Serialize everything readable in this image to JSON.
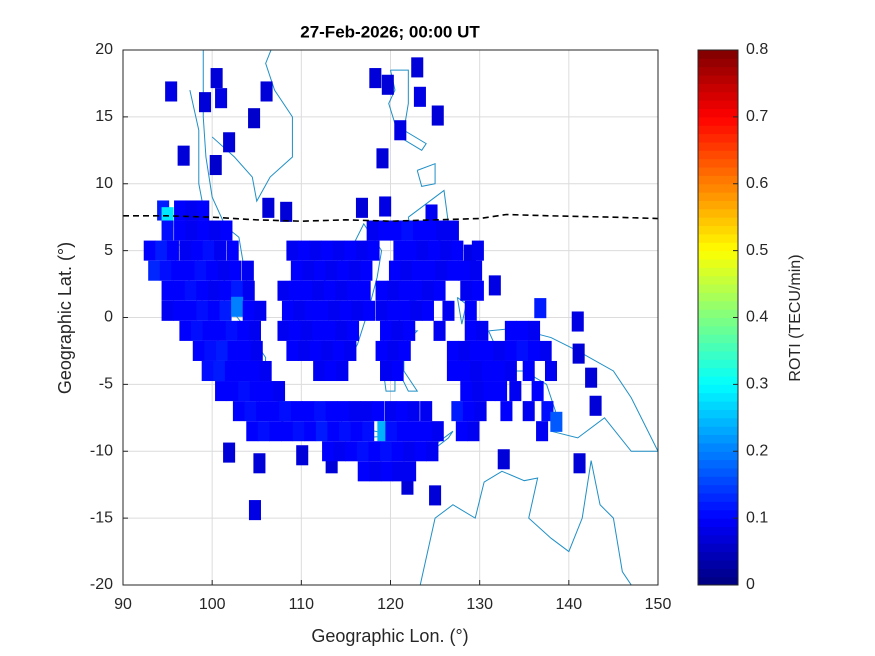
{
  "chart_data": {
    "type": "grid-map",
    "title": "27-Feb-2026; 00:00 UT",
    "xlabel": "Geographic Lon. (°)",
    "ylabel": "Geographic Lat. (°)",
    "colorbar_label": "ROTI (TECU/min)",
    "colormap": "jet",
    "clim": [
      0,
      0.8
    ],
    "cticks": [
      0,
      0.1,
      0.2,
      0.3,
      0.4,
      0.5,
      0.6,
      0.7,
      0.8
    ],
    "xlim": [
      90,
      150
    ],
    "xticks": [
      90,
      100,
      110,
      120,
      130,
      140,
      150
    ],
    "ylim": [
      -20,
      20
    ],
    "yticks": [
      -20,
      -15,
      -10,
      -5,
      0,
      5,
      10,
      15,
      20
    ],
    "grid": true,
    "cells": [
      [
        95.4,
        16.9,
        0.08
      ],
      [
        100.5,
        17.9,
        0.07
      ],
      [
        99.2,
        16.1,
        0.07
      ],
      [
        101,
        16.4,
        0.08
      ],
      [
        106.1,
        16.9,
        0.07
      ],
      [
        104.7,
        14.9,
        0.06
      ],
      [
        101.9,
        13.1,
        0.07
      ],
      [
        96.8,
        12.1,
        0.07
      ],
      [
        100.4,
        11.4,
        0.06
      ],
      [
        118.3,
        17.9,
        0.07
      ],
      [
        119.7,
        17.4,
        0.07
      ],
      [
        123,
        18.7,
        0.07
      ],
      [
        123.3,
        16.5,
        0.08
      ],
      [
        125.3,
        15.1,
        0.07
      ],
      [
        121.1,
        14,
        0.08
      ],
      [
        119.1,
        11.9,
        0.07
      ],
      [
        106.3,
        8.2,
        0.07
      ],
      [
        108.3,
        7.9,
        0.07
      ],
      [
        116.8,
        8.2,
        0.07
      ],
      [
        119.4,
        8.3,
        0.08
      ],
      [
        101.9,
        -10.1,
        0.07
      ],
      [
        105.3,
        -10.9,
        0.07
      ],
      [
        104.8,
        -14.4,
        0.08
      ],
      [
        110.1,
        -10.3,
        0.07
      ],
      [
        113.4,
        -10.9,
        0.07
      ],
      [
        121.9,
        -12.5,
        0.07
      ],
      [
        125,
        -13.3,
        0.07
      ],
      [
        132.7,
        -10.6,
        0.07
      ],
      [
        141.2,
        -10.9,
        0.07
      ],
      [
        142.5,
        -4.5,
        0.07
      ],
      [
        141.1,
        -2.7,
        0.07
      ],
      [
        141,
        -0.3,
        0.08
      ],
      [
        136.8,
        0.7,
        0.12
      ],
      [
        143,
        -6.6,
        0.07
      ],
      [
        131.7,
        2.4,
        0.08
      ],
      [
        128.9,
        4.7,
        0.08
      ],
      [
        124.6,
        7.7,
        0.09
      ],
      [
        94.5,
        8,
        0.12
      ],
      [
        95,
        7.5,
        0.28
      ],
      [
        96.4,
        8,
        0.1
      ],
      [
        97.7,
        8,
        0.09
      ],
      [
        99,
        8,
        0.1
      ],
      [
        95,
        6.5,
        0.11
      ],
      [
        96.4,
        6.5,
        0.1
      ],
      [
        97.7,
        6.5,
        0.09
      ],
      [
        99,
        6.5,
        0.1
      ],
      [
        100.3,
        6.5,
        0.09
      ],
      [
        101.6,
        6.5,
        0.1
      ],
      [
        93,
        5,
        0.1
      ],
      [
        94.3,
        5,
        0.12
      ],
      [
        95.6,
        5,
        0.1
      ],
      [
        97,
        5,
        0.09
      ],
      [
        98.3,
        5,
        0.1
      ],
      [
        99.6,
        5,
        0.11
      ],
      [
        100.9,
        5,
        0.09
      ],
      [
        102.3,
        5,
        0.1
      ],
      [
        93.5,
        3.5,
        0.13
      ],
      [
        94.8,
        3.5,
        0.11
      ],
      [
        96.1,
        3.5,
        0.1
      ],
      [
        97.4,
        3.5,
        0.1
      ],
      [
        98.7,
        3.5,
        0.11
      ],
      [
        100,
        3.5,
        0.1
      ],
      [
        101.3,
        3.5,
        0.09
      ],
      [
        102.6,
        3.5,
        0.1
      ],
      [
        104,
        3.5,
        0.09
      ],
      [
        95,
        2,
        0.1
      ],
      [
        96.3,
        2,
        0.1
      ],
      [
        97.6,
        2,
        0.11
      ],
      [
        98.9,
        2,
        0.1
      ],
      [
        100.2,
        2,
        0.09
      ],
      [
        101.5,
        2,
        0.1
      ],
      [
        102.8,
        2,
        0.12
      ],
      [
        104.1,
        2,
        0.09
      ],
      [
        95,
        0.5,
        0.09
      ],
      [
        96.3,
        0.5,
        0.1
      ],
      [
        97.6,
        0.5,
        0.1
      ],
      [
        98.9,
        0.5,
        0.11
      ],
      [
        100.2,
        0.5,
        0.1
      ],
      [
        101.5,
        0.5,
        0.12
      ],
      [
        102.8,
        0.8,
        0.2
      ],
      [
        104.1,
        0.5,
        0.1
      ],
      [
        105.4,
        0.5,
        0.09
      ],
      [
        97,
        -1,
        0.1
      ],
      [
        98.3,
        -1,
        0.11
      ],
      [
        99.6,
        -1,
        0.1
      ],
      [
        100.9,
        -1,
        0.1
      ],
      [
        102.2,
        -1,
        0.11
      ],
      [
        103.5,
        -1,
        0.1
      ],
      [
        104.8,
        -1,
        0.09
      ],
      [
        98.5,
        -2.5,
        0.1
      ],
      [
        99.8,
        -2.5,
        0.11
      ],
      [
        101.1,
        -2.5,
        0.12
      ],
      [
        102.4,
        -2.5,
        0.1
      ],
      [
        103.7,
        -2.5,
        0.1
      ],
      [
        105,
        -2.5,
        0.09
      ],
      [
        99.5,
        -4,
        0.11
      ],
      [
        100.8,
        -4,
        0.12
      ],
      [
        102.1,
        -4,
        0.1
      ],
      [
        103.4,
        -4,
        0.1
      ],
      [
        104.7,
        -4,
        0.1
      ],
      [
        106,
        -4,
        0.09
      ],
      [
        101,
        -5.5,
        0.1
      ],
      [
        102.3,
        -5.5,
        0.1
      ],
      [
        103.6,
        -5.5,
        0.11
      ],
      [
        104.9,
        -5.5,
        0.1
      ],
      [
        106.2,
        -5.5,
        0.1
      ],
      [
        107.5,
        -5.5,
        0.09
      ],
      [
        103,
        -7,
        0.1
      ],
      [
        104.3,
        -7,
        0.11
      ],
      [
        105.6,
        -7,
        0.1
      ],
      [
        106.9,
        -7,
        0.1
      ],
      [
        108.2,
        -7,
        0.11
      ],
      [
        109.5,
        -7,
        0.1
      ],
      [
        110.8,
        -7,
        0.1
      ],
      [
        112.1,
        -7,
        0.11
      ],
      [
        113.4,
        -7,
        0.1
      ],
      [
        114.7,
        -7,
        0.1
      ],
      [
        116,
        -7,
        0.09
      ],
      [
        117.3,
        -7,
        0.09
      ],
      [
        118.6,
        -7,
        0.1
      ],
      [
        120,
        -7,
        0.09
      ],
      [
        121.3,
        -7,
        0.1
      ],
      [
        122.6,
        -7,
        0.09
      ],
      [
        124,
        -7,
        0.09
      ],
      [
        104.5,
        -8.5,
        0.1
      ],
      [
        105.8,
        -8.5,
        0.11
      ],
      [
        107.1,
        -8.5,
        0.1
      ],
      [
        108.4,
        -8.5,
        0.1
      ],
      [
        109.7,
        -8.5,
        0.11
      ],
      [
        111,
        -8.5,
        0.1
      ],
      [
        112.3,
        -8.5,
        0.12
      ],
      [
        113.6,
        -8.5,
        0.1
      ],
      [
        114.9,
        -8.5,
        0.11
      ],
      [
        116.2,
        -8.5,
        0.1
      ],
      [
        117.5,
        -8.5,
        0.11
      ],
      [
        119.2,
        -8.5,
        0.24
      ],
      [
        120.1,
        -8.5,
        0.11
      ],
      [
        121.4,
        -8.5,
        0.1
      ],
      [
        122.7,
        -8.5,
        0.1
      ],
      [
        124,
        -8.5,
        0.1
      ],
      [
        125.3,
        -8.5,
        0.09
      ],
      [
        113,
        -10,
        0.1
      ],
      [
        114.3,
        -10,
        0.09
      ],
      [
        115.6,
        -10,
        0.1
      ],
      [
        116.9,
        -10,
        0.11
      ],
      [
        118.2,
        -10,
        0.1
      ],
      [
        119.5,
        -10,
        0.11
      ],
      [
        120.8,
        -10,
        0.1
      ],
      [
        122.1,
        -10,
        0.09
      ],
      [
        123.4,
        -10,
        0.1
      ],
      [
        124.7,
        -10,
        0.09
      ],
      [
        117,
        -11.5,
        0.1
      ],
      [
        118.3,
        -11.5,
        0.09
      ],
      [
        119.6,
        -11.5,
        0.1
      ],
      [
        120.9,
        -11.5,
        0.09
      ],
      [
        122.2,
        -11.5,
        0.09
      ],
      [
        109,
        5,
        0.09
      ],
      [
        110.3,
        5,
        0.1
      ],
      [
        111.6,
        5,
        0.09
      ],
      [
        112.9,
        5,
        0.1
      ],
      [
        114.2,
        5,
        0.09
      ],
      [
        115.5,
        5,
        0.1
      ],
      [
        116.8,
        5,
        0.09
      ],
      [
        118.1,
        5,
        0.1
      ],
      [
        109.5,
        3.5,
        0.1
      ],
      [
        110.8,
        3.5,
        0.09
      ],
      [
        112.1,
        3.5,
        0.1
      ],
      [
        113.4,
        3.5,
        0.09
      ],
      [
        114.7,
        3.5,
        0.1
      ],
      [
        116,
        3.5,
        0.09
      ],
      [
        117.3,
        3.5,
        0.1
      ],
      [
        108,
        2,
        0.09
      ],
      [
        109.3,
        2,
        0.1
      ],
      [
        110.6,
        2,
        0.1
      ],
      [
        111.9,
        2,
        0.09
      ],
      [
        113.2,
        2,
        0.1
      ],
      [
        114.5,
        2,
        0.09
      ],
      [
        115.8,
        2,
        0.1
      ],
      [
        117.1,
        2,
        0.1
      ],
      [
        108.5,
        0.5,
        0.1
      ],
      [
        109.8,
        0.5,
        0.09
      ],
      [
        111.1,
        0.5,
        0.1
      ],
      [
        112.4,
        0.5,
        0.1
      ],
      [
        113.7,
        0.5,
        0.09
      ],
      [
        115,
        0.5,
        0.1
      ],
      [
        116.3,
        0.5,
        0.09
      ],
      [
        117.6,
        0.5,
        0.1
      ],
      [
        108,
        -1,
        0.09
      ],
      [
        109.3,
        -1,
        0.1
      ],
      [
        110.6,
        -1,
        0.09
      ],
      [
        111.9,
        -1,
        0.1
      ],
      [
        113.2,
        -1,
        0.1
      ],
      [
        114.5,
        -1,
        0.09
      ],
      [
        115.8,
        -1,
        0.1
      ],
      [
        109,
        -2.5,
        0.1
      ],
      [
        110.3,
        -2.5,
        0.09
      ],
      [
        111.6,
        -2.5,
        0.1
      ],
      [
        112.9,
        -2.5,
        0.09
      ],
      [
        114.2,
        -2.5,
        0.1
      ],
      [
        115.5,
        -2.5,
        0.09
      ],
      [
        112,
        -4,
        0.09
      ],
      [
        113.3,
        -4,
        0.1
      ],
      [
        114.6,
        -4,
        0.09
      ],
      [
        118,
        6.5,
        0.09
      ],
      [
        119.3,
        6.5,
        0.1
      ],
      [
        120.6,
        6.5,
        0.1
      ],
      [
        121.9,
        6.5,
        0.11
      ],
      [
        123.2,
        6.5,
        0.1
      ],
      [
        124.5,
        6.5,
        0.1
      ],
      [
        125.8,
        6.5,
        0.09
      ],
      [
        127,
        6.5,
        0.09
      ],
      [
        121,
        5,
        0.1
      ],
      [
        122.3,
        5,
        0.1
      ],
      [
        123.6,
        5,
        0.09
      ],
      [
        124.9,
        5,
        0.1
      ],
      [
        126.2,
        5,
        0.09
      ],
      [
        127.5,
        5,
        0.1
      ],
      [
        129.8,
        5,
        0.09
      ],
      [
        120.5,
        3.5,
        0.1
      ],
      [
        121.8,
        3.5,
        0.09
      ],
      [
        123.1,
        3.5,
        0.1
      ],
      [
        124.4,
        3.5,
        0.1
      ],
      [
        125.7,
        3.5,
        0.09
      ],
      [
        127,
        3.5,
        0.1
      ],
      [
        128.3,
        3.5,
        0.1
      ],
      [
        129.6,
        3.5,
        0.09
      ],
      [
        119,
        2,
        0.1
      ],
      [
        120.3,
        2,
        0.09
      ],
      [
        121.6,
        2,
        0.1
      ],
      [
        122.9,
        2,
        0.1
      ],
      [
        124.2,
        2,
        0.09
      ],
      [
        125.5,
        2,
        0.1
      ],
      [
        128.5,
        2,
        0.09
      ],
      [
        129.8,
        2,
        0.1
      ],
      [
        119,
        0.5,
        0.09
      ],
      [
        120.3,
        0.5,
        0.1
      ],
      [
        121.6,
        0.5,
        0.1
      ],
      [
        122.9,
        0.5,
        0.09
      ],
      [
        124.2,
        0.5,
        0.1
      ],
      [
        126.5,
        0.5,
        0.09
      ],
      [
        129,
        0.5,
        0.1
      ],
      [
        119.5,
        -1,
        0.1
      ],
      [
        120.8,
        -1,
        0.09
      ],
      [
        122.1,
        -1,
        0.1
      ],
      [
        125.5,
        -1,
        0.09
      ],
      [
        119,
        -2.5,
        0.1
      ],
      [
        120.3,
        -2.5,
        0.09
      ],
      [
        121.6,
        -2.5,
        0.1
      ],
      [
        119.5,
        -4,
        0.09
      ],
      [
        120.8,
        -4,
        0.1
      ],
      [
        129,
        -1,
        0.1
      ],
      [
        130.3,
        -1,
        0.09
      ],
      [
        133.5,
        -1,
        0.1
      ],
      [
        134.8,
        -1,
        0.1
      ],
      [
        136.1,
        -1,
        0.09
      ],
      [
        127,
        -2.5,
        0.1
      ],
      [
        128.3,
        -2.5,
        0.09
      ],
      [
        129.6,
        -2.5,
        0.1
      ],
      [
        130.9,
        -2.5,
        0.1
      ],
      [
        132.2,
        -2.5,
        0.09
      ],
      [
        133.5,
        -2.5,
        0.1
      ],
      [
        134.8,
        -2.5,
        0.11
      ],
      [
        136.1,
        -2.5,
        0.1
      ],
      [
        137.4,
        -2.5,
        0.09
      ],
      [
        127,
        -4,
        0.1
      ],
      [
        128.3,
        -4,
        0.1
      ],
      [
        129.6,
        -4,
        0.09
      ],
      [
        130.9,
        -4,
        0.1
      ],
      [
        132.2,
        -4,
        0.1
      ],
      [
        133.5,
        -4,
        0.09
      ],
      [
        135.5,
        -4,
        0.1
      ],
      [
        138,
        -4,
        0.09
      ],
      [
        128.5,
        -5.5,
        0.1
      ],
      [
        129.8,
        -5.5,
        0.09
      ],
      [
        131.1,
        -5.5,
        0.1
      ],
      [
        132.4,
        -5.5,
        0.1
      ],
      [
        134,
        -5.5,
        0.09
      ],
      [
        136.5,
        -5.5,
        0.1
      ],
      [
        127.5,
        -7,
        0.12
      ],
      [
        128.8,
        -7,
        0.1
      ],
      [
        130.1,
        -7,
        0.09
      ],
      [
        133,
        -7,
        0.1
      ],
      [
        135.5,
        -7,
        0.09
      ],
      [
        137.6,
        -7,
        0.11
      ],
      [
        138.6,
        -7.8,
        0.17
      ],
      [
        128,
        -8.5,
        0.1
      ],
      [
        129.3,
        -8.5,
        0.09
      ],
      [
        137,
        -8.5,
        0.09
      ]
    ]
  }
}
